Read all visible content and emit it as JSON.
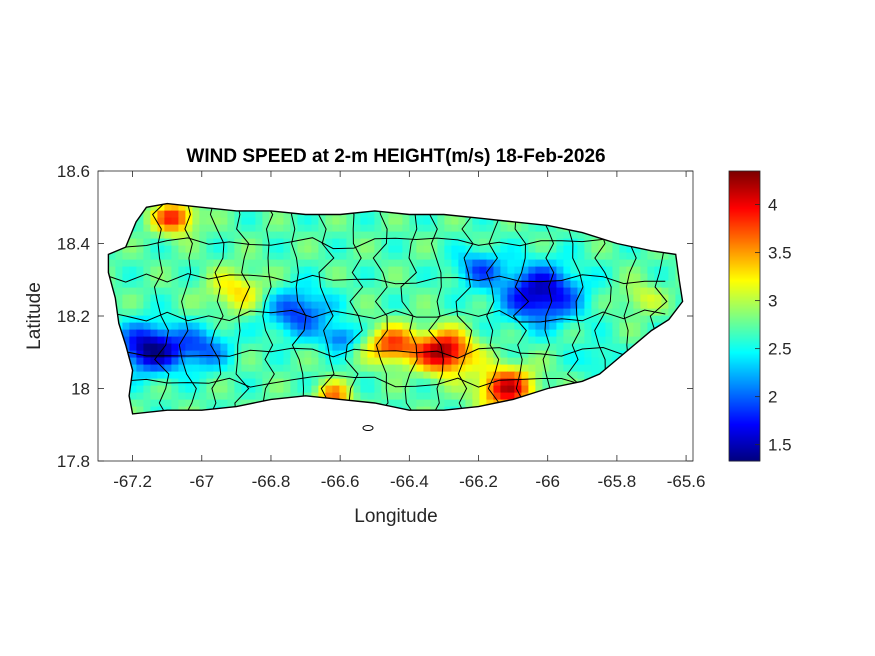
{
  "figure": {
    "title": "WIND SPEED at 2-m HEIGHT(m/s) 18-Feb-2026",
    "xlabel": "Longitude",
    "ylabel": "Latitude"
  },
  "axes": {
    "xlim": [
      -67.3,
      -65.58
    ],
    "ylim": [
      17.8,
      18.6
    ],
    "xticks": [
      -67.2,
      -67,
      -66.8,
      -66.6,
      -66.4,
      -66.2,
      -66,
      -65.8,
      -65.6
    ],
    "xtick_labels": [
      "-67.2",
      "-67",
      "-66.8",
      "-66.6",
      "-66.4",
      "-66.2",
      "-66",
      "-65.8",
      "-65.6"
    ],
    "yticks": [
      17.8,
      18,
      18.2,
      18.4,
      18.6
    ],
    "ytick_labels": [
      "17.8",
      "18",
      "18.2",
      "18.4",
      "18.6"
    ]
  },
  "colorbar": {
    "colormap": "jet",
    "range": [
      1.33,
      4.35
    ],
    "ticks": [
      1.5,
      2,
      2.5,
      3,
      3.5,
      4
    ],
    "tick_labels": [
      "1.5",
      "2",
      "2.5",
      "3",
      "3.5",
      "4"
    ]
  },
  "chart_data": {
    "type": "heatmap",
    "title": "WIND SPEED at 2-m HEIGHT(m/s) 18-Feb-2026",
    "xlabel": "Longitude",
    "ylabel": "Latitude",
    "xlim": [
      -67.3,
      -65.58
    ],
    "ylim": [
      17.8,
      18.6
    ],
    "value_range": [
      1.33,
      4.35
    ],
    "units": "m/s",
    "region_outline_lonlat": [
      [
        -67.27,
        18.37
      ],
      [
        -67.22,
        18.39
      ],
      [
        -67.19,
        18.46
      ],
      [
        -67.16,
        18.5
      ],
      [
        -67.1,
        18.51
      ],
      [
        -67.0,
        18.5
      ],
      [
        -66.9,
        18.49
      ],
      [
        -66.8,
        18.49
      ],
      [
        -66.7,
        18.48
      ],
      [
        -66.6,
        18.48
      ],
      [
        -66.5,
        18.49
      ],
      [
        -66.4,
        18.48
      ],
      [
        -66.3,
        18.48
      ],
      [
        -66.2,
        18.47
      ],
      [
        -66.1,
        18.46
      ],
      [
        -66.0,
        18.45
      ],
      [
        -65.9,
        18.43
      ],
      [
        -65.8,
        18.4
      ],
      [
        -65.7,
        18.38
      ],
      [
        -65.63,
        18.37
      ],
      [
        -65.62,
        18.3
      ],
      [
        -65.61,
        18.24
      ],
      [
        -65.65,
        18.19
      ],
      [
        -65.7,
        18.16
      ],
      [
        -65.75,
        18.12
      ],
      [
        -65.8,
        18.08
      ],
      [
        -65.85,
        18.04
      ],
      [
        -65.9,
        18.02
      ],
      [
        -66.0,
        18.0
      ],
      [
        -66.1,
        17.97
      ],
      [
        -66.2,
        17.95
      ],
      [
        -66.3,
        17.94
      ],
      [
        -66.4,
        17.94
      ],
      [
        -66.5,
        17.96
      ],
      [
        -66.6,
        17.97
      ],
      [
        -66.7,
        17.98
      ],
      [
        -66.8,
        17.97
      ],
      [
        -66.9,
        17.95
      ],
      [
        -67.0,
        17.94
      ],
      [
        -67.1,
        17.94
      ],
      [
        -67.2,
        17.93
      ],
      [
        -67.21,
        17.98
      ],
      [
        -67.2,
        18.05
      ],
      [
        -67.22,
        18.12
      ],
      [
        -67.24,
        18.18
      ],
      [
        -67.25,
        18.25
      ],
      [
        -67.27,
        18.32
      ]
    ],
    "value_centers": [
      {
        "lon": -67.15,
        "lat": 18.11,
        "value": 1.35,
        "spread": 0.09
      },
      {
        "lon": -67.0,
        "lat": 18.11,
        "value": 2.0,
        "spread": 0.08
      },
      {
        "lon": -66.72,
        "lat": 18.21,
        "value": 1.85,
        "spread": 0.09
      },
      {
        "lon": -66.6,
        "lat": 18.14,
        "value": 2.0,
        "spread": 0.05
      },
      {
        "lon": -66.02,
        "lat": 18.26,
        "value": 1.45,
        "spread": 0.11
      },
      {
        "lon": -66.2,
        "lat": 18.33,
        "value": 2.0,
        "spread": 0.07
      },
      {
        "lon": -66.3,
        "lat": 18.1,
        "value": 4.3,
        "spread": 0.08
      },
      {
        "lon": -66.12,
        "lat": 18.0,
        "value": 4.1,
        "spread": 0.08
      },
      {
        "lon": -66.45,
        "lat": 18.12,
        "value": 3.8,
        "spread": 0.07
      },
      {
        "lon": -67.08,
        "lat": 18.47,
        "value": 3.9,
        "spread": 0.06
      },
      {
        "lon": -66.62,
        "lat": 17.98,
        "value": 3.6,
        "spread": 0.05
      },
      {
        "lon": -66.9,
        "lat": 18.27,
        "value": 3.3,
        "spread": 0.08
      },
      {
        "lon": -65.73,
        "lat": 18.25,
        "value": 3.1,
        "spread": 0.06
      },
      {
        "lon": -65.85,
        "lat": 18.08,
        "value": 2.4,
        "spread": 0.06
      }
    ],
    "baseline_value": 2.7
  }
}
